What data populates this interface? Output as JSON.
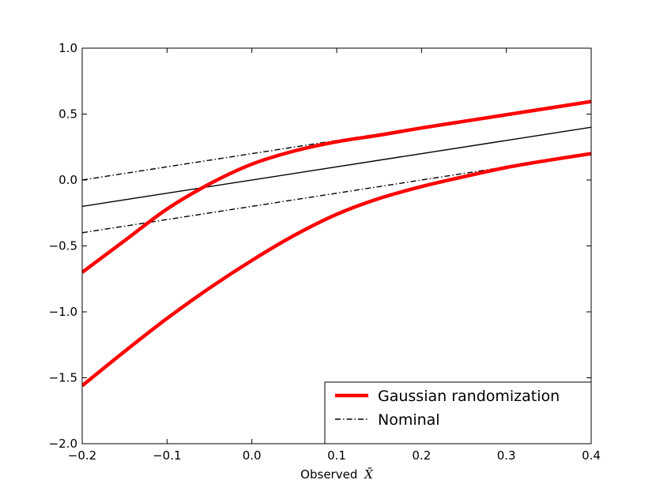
{
  "chart_data": {
    "type": "line",
    "title": "",
    "xlabel": "Observed",
    "xlabel_symbol": "X̄",
    "ylabel": "",
    "xlim": [
      -0.2,
      0.4
    ],
    "ylim": [
      -2.0,
      1.0
    ],
    "x_ticks": [
      -0.2,
      -0.1,
      0.0,
      0.1,
      0.2,
      0.3,
      0.4
    ],
    "x_tick_labels": [
      "−0.2",
      "−0.1",
      "0.0",
      "0.1",
      "0.2",
      "0.3",
      "0.4"
    ],
    "y_ticks": [
      1.0,
      0.5,
      0.0,
      -0.5,
      -1.0,
      -1.5,
      -2.0
    ],
    "y_tick_labels": [
      "1.0",
      "0.5",
      "0.0",
      "−0.5",
      "−1.0",
      "−1.5",
      "−2.0"
    ],
    "grid": false,
    "legend_position": "lower-right",
    "legend": [
      {
        "label": "Gaussian randomization",
        "style": "solid-thick",
        "color": "#ff0000"
      },
      {
        "label": "Nominal",
        "style": "dash-dot",
        "color": "#000000"
      }
    ],
    "series": [
      {
        "name": "Gaussian randomization",
        "role": "upper",
        "color": "#ff0000",
        "x": [
          -0.2,
          -0.15,
          -0.1,
          -0.05,
          0.0,
          0.05,
          0.1,
          0.15,
          0.2,
          0.25,
          0.3,
          0.35,
          0.4
        ],
        "y": [
          -0.7,
          -0.46,
          -0.22,
          -0.03,
          0.12,
          0.22,
          0.29,
          0.34,
          0.395,
          0.445,
          0.495,
          0.545,
          0.595
        ]
      },
      {
        "name": "Gaussian randomization",
        "role": "lower",
        "color": "#ff0000",
        "x": [
          -0.2,
          -0.15,
          -0.1,
          -0.05,
          0.0,
          0.05,
          0.1,
          0.15,
          0.2,
          0.25,
          0.3,
          0.35,
          0.4
        ],
        "y": [
          -1.56,
          -1.3,
          -1.05,
          -0.82,
          -0.61,
          -0.42,
          -0.26,
          -0.14,
          -0.05,
          0.025,
          0.095,
          0.15,
          0.2
        ]
      },
      {
        "name": "Nominal",
        "role": "upper",
        "color": "#000000",
        "x": [
          -0.2,
          0.4
        ],
        "y": [
          0.0,
          0.6
        ]
      },
      {
        "name": "Nominal",
        "role": "lower",
        "color": "#000000",
        "x": [
          -0.2,
          0.4
        ],
        "y": [
          -0.4,
          0.2
        ]
      },
      {
        "role": "center",
        "color": "#000000",
        "x": [
          -0.2,
          0.4
        ],
        "y": [
          -0.2,
          0.4
        ]
      }
    ]
  }
}
